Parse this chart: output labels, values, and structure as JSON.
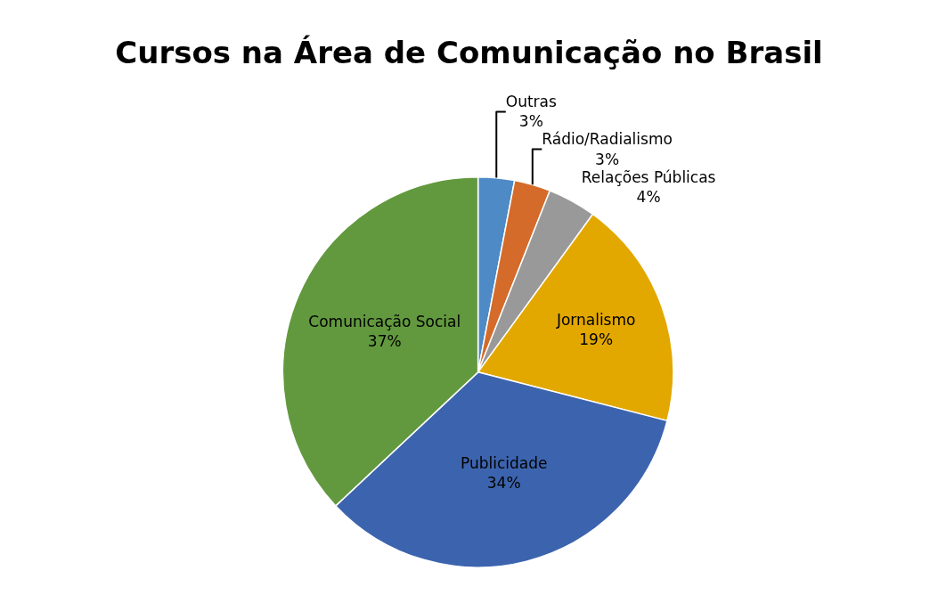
{
  "chart_data": {
    "type": "pie",
    "title": "Cursos na Área de Comunicação no Brasil",
    "categories": [
      "Outras",
      "Rádio/Radialismo",
      "Relações Públicas",
      "Jornalismo",
      "Publicidade",
      "Comunicação Social"
    ],
    "values": [
      3,
      3,
      4,
      19,
      34,
      37
    ],
    "value_labels": [
      "3%",
      "3%",
      "4%",
      "19%",
      "34%",
      "37%"
    ],
    "colors": [
      "#4e8ac6",
      "#d46b2a",
      "#999999",
      "#e3a800",
      "#3c64ae",
      "#62993e"
    ],
    "legend": false
  }
}
